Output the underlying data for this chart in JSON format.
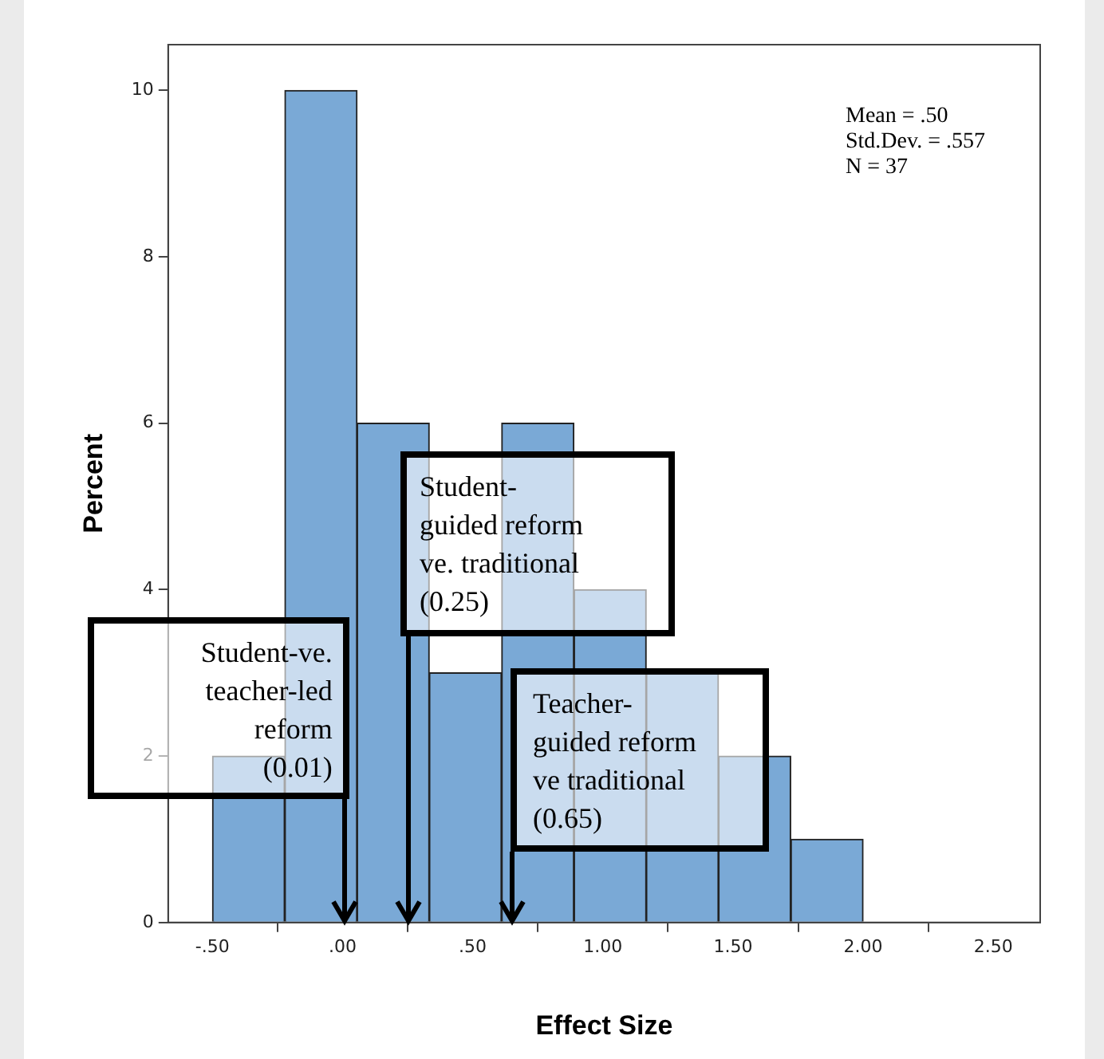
{
  "chart_data": {
    "type": "histogram",
    "xlabel": "Effect Size",
    "ylabel": "Percent",
    "bins": [
      -0.5,
      -0.222,
      0.056,
      0.333,
      0.611,
      0.889,
      1.167,
      1.444,
      1.722,
      2.0
    ],
    "values": [
      2,
      10,
      6,
      3,
      6,
      4,
      3,
      2,
      1
    ],
    "color": "#7aa9d6",
    "xlim": [
      -0.67,
      2.68
    ],
    "xticks": [
      {
        "value": -0.5,
        "label": "-.50"
      },
      {
        "value": 0,
        "label": ".00"
      },
      {
        "value": 0.5,
        "label": ".50"
      },
      {
        "value": 1,
        "label": "1.00"
      },
      {
        "value": 1.5,
        "label": "1.50"
      },
      {
        "value": 2,
        "label": "2.00"
      },
      {
        "value": 2.5,
        "label": "2.50"
      }
    ],
    "ylim": [
      0,
      10.55
    ],
    "yticks": [
      0,
      2,
      4,
      6,
      8,
      10
    ],
    "grid": false,
    "legend": false,
    "annotations": [
      "Mean = .50",
      "Std.Dev. = .557",
      "N = 37",
      {
        "text": "Student-ve.\nteacher-led\nreform\n(0.01)",
        "x": 0.01,
        "y": 0
      },
      {
        "text": "Student-\nguided reform\nve. traditional\n(0.25)",
        "x": 0.25,
        "y": 0
      },
      {
        "text": "Teacher-\nguided reform\nve traditional\n(0.65)",
        "x": 0.65,
        "y": 0
      }
    ]
  }
}
